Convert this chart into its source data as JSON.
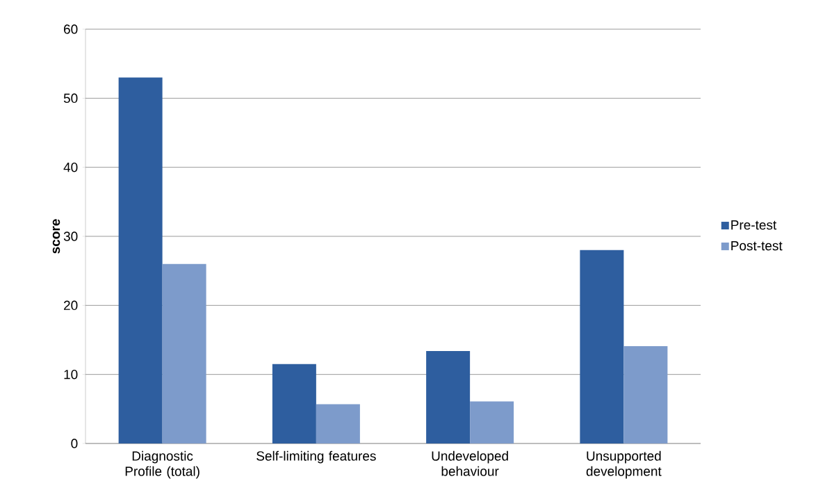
{
  "chart_data": {
    "type": "bar",
    "ylabel": "score",
    "categories": [
      "Diagnostic Profile (total)",
      "Self-limiting features",
      "Undeveloped behaviour",
      "Unsupported development"
    ],
    "series": [
      {
        "name": "Pre-test",
        "color": "#2e5e9f",
        "values": [
          53,
          11.5,
          13.4,
          28
        ]
      },
      {
        "name": "Post-test",
        "color": "#7d9bcb",
        "values": [
          26,
          5.7,
          6.1,
          14.1
        ]
      }
    ],
    "ylim": [
      0,
      60
    ],
    "yticks": [
      0,
      10,
      20,
      30,
      40,
      50,
      60
    ],
    "grid": "y",
    "legend": "right"
  }
}
